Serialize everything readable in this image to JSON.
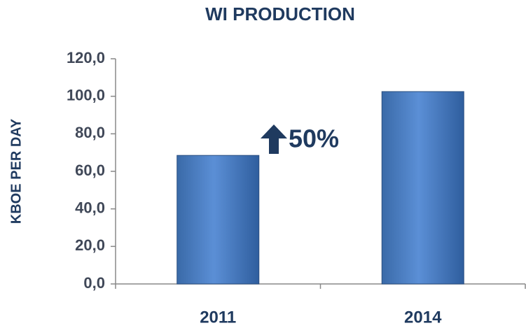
{
  "chart_data": {
    "type": "bar",
    "title": "WI PRODUCTION",
    "y_label": "KBOE PER DAY",
    "categories": [
      "2011",
      "2014"
    ],
    "values": [
      68.5,
      102.5
    ],
    "color": "#4f81bd",
    "ylim": [
      0,
      120
    ],
    "yticks": [
      {
        "value": 0,
        "label": "0,0"
      },
      {
        "value": 20,
        "label": "20,0"
      },
      {
        "value": 40,
        "label": "40,0"
      },
      {
        "value": 60,
        "label": "60,0"
      },
      {
        "value": 80,
        "label": "80,0"
      },
      {
        "value": 100,
        "label": "100,0"
      },
      {
        "value": 120,
        "label": "120,0"
      }
    ],
    "annotation": "50%",
    "grid": false
  }
}
